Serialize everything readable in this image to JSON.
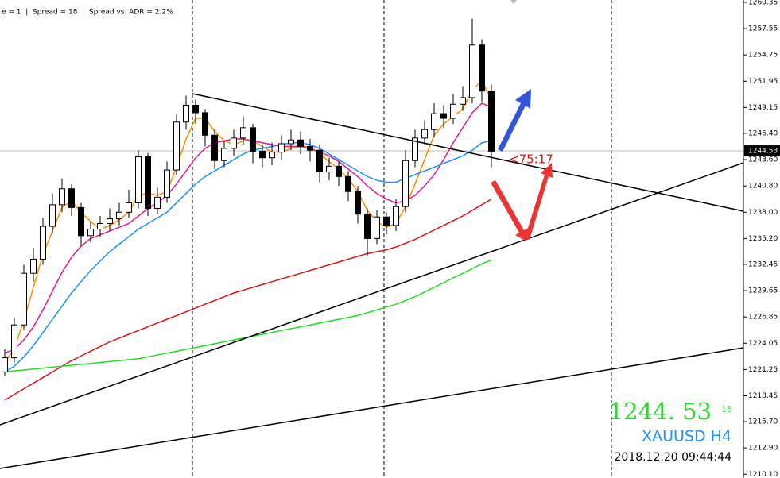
{
  "chart_data": {
    "type": "candlestick",
    "info": "e = 1  |  Spread = 18  |  Spread vs. ADR = 2.2%",
    "open": [
      1221.0,
      1222.5,
      1226.0,
      1231.5,
      1233.0,
      1236.5,
      1238.8,
      1240.5,
      1238.5,
      1235.5,
      1236.2,
      1236.8,
      1237.3,
      1238.0,
      1239.0,
      1243.9,
      1238.4,
      1239.6,
      1242.5,
      1247.6,
      1249.4,
      1248.6,
      1246.2,
      1243.5,
      1244.8,
      1245.9,
      1247.0,
      1244.5,
      1243.8,
      1244.4,
      1245.3,
      1245.7,
      1245.0,
      1244.6,
      1242.3,
      1242.9,
      1241.8,
      1240.2,
      1237.8,
      1235.2,
      1237.5,
      1236.6,
      1238.6,
      1243.5,
      1245.9,
      1246.8,
      1248.5,
      1248.0,
      1249.5,
      1250.2,
      1255.8,
      1250.9
    ],
    "high": [
      1223.4,
      1226.8,
      1232.4,
      1234.2,
      1237.4,
      1240.0,
      1241.6,
      1241.0,
      1239.0,
      1237.0,
      1237.6,
      1238.4,
      1239.0,
      1240.4,
      1244.6,
      1244.3,
      1240.6,
      1243.4,
      1248.4,
      1250.4,
      1250.0,
      1249.0,
      1246.8,
      1245.6,
      1246.8,
      1248.2,
      1247.4,
      1245.2,
      1245.4,
      1246.2,
      1246.8,
      1246.6,
      1245.8,
      1245.2,
      1243.8,
      1243.4,
      1242.4,
      1240.8,
      1238.4,
      1238.2,
      1238.0,
      1239.4,
      1244.6,
      1246.8,
      1247.8,
      1249.6,
      1249.4,
      1250.6,
      1251.4,
      1258.6,
      1256.4,
      1251.6
    ],
    "low": [
      1220.6,
      1222.0,
      1225.5,
      1230.6,
      1232.4,
      1235.8,
      1238.0,
      1237.6,
      1234.4,
      1234.8,
      1235.4,
      1236.0,
      1236.6,
      1237.4,
      1238.4,
      1237.6,
      1237.8,
      1239.0,
      1242.0,
      1246.8,
      1247.4,
      1245.0,
      1242.6,
      1242.8,
      1244.0,
      1245.2,
      1243.2,
      1242.8,
      1243.0,
      1243.6,
      1244.6,
      1244.2,
      1243.4,
      1241.2,
      1241.4,
      1240.8,
      1239.2,
      1236.8,
      1233.4,
      1234.6,
      1235.6,
      1236.0,
      1238.0,
      1242.8,
      1245.2,
      1246.0,
      1247.0,
      1247.4,
      1248.8,
      1249.6,
      1249.8,
      1242.8
    ],
    "close": [
      1222.5,
      1226.0,
      1231.5,
      1233.0,
      1236.5,
      1238.8,
      1240.5,
      1238.5,
      1235.5,
      1236.2,
      1236.8,
      1237.3,
      1238.0,
      1239.0,
      1243.9,
      1238.4,
      1239.6,
      1242.5,
      1247.6,
      1249.4,
      1248.6,
      1246.2,
      1243.5,
      1244.8,
      1245.9,
      1247.0,
      1244.5,
      1243.8,
      1244.4,
      1245.3,
      1245.7,
      1245.0,
      1244.6,
      1242.3,
      1242.9,
      1241.8,
      1240.2,
      1237.8,
      1235.2,
      1237.5,
      1236.6,
      1238.6,
      1243.5,
      1245.9,
      1246.8,
      1248.5,
      1248.0,
      1249.5,
      1250.2,
      1255.8,
      1250.9,
      1244.5
    ],
    "series": [
      {
        "color": "#ff8c00",
        "values": [
          1222.0,
          1223.5,
          1226.5,
          1230.0,
          1233.5,
          1236.0,
          1238.5,
          1239.2,
          1238.0,
          1237.0,
          1236.2,
          1236.6,
          1237.2,
          1238.0,
          1239.8,
          1240.0,
          1239.8,
          1240.2,
          1242.8,
          1245.8,
          1248.0,
          1248.0,
          1246.6,
          1245.6,
          1245.2,
          1245.6,
          1245.6,
          1245.0,
          1244.4,
          1244.4,
          1244.8,
          1245.0,
          1245.0,
          1244.2,
          1243.4,
          1242.6,
          1241.6,
          1240.2,
          1238.2,
          1237.0,
          1236.4,
          1236.8,
          1238.6,
          1241.0,
          1243.6,
          1246.2,
          1247.4,
          1248.2,
          1249.0,
          1251.0,
          1252.0,
          1250.0
        ]
      },
      {
        "color": "#e8188c",
        "values": [
          1223.0,
          1223.4,
          1224.4,
          1225.8,
          1227.6,
          1229.6,
          1231.6,
          1233.2,
          1234.4,
          1235.2,
          1235.6,
          1236.0,
          1236.4,
          1236.8,
          1237.6,
          1238.4,
          1239.0,
          1239.8,
          1241.0,
          1242.4,
          1243.8,
          1244.8,
          1245.4,
          1245.6,
          1245.8,
          1245.8,
          1245.6,
          1245.4,
          1245.2,
          1245.0,
          1245.0,
          1245.0,
          1244.8,
          1244.4,
          1244.0,
          1243.4,
          1242.6,
          1241.8,
          1240.8,
          1240.0,
          1239.4,
          1239.0,
          1239.2,
          1239.8,
          1240.8,
          1242.0,
          1243.6,
          1245.4,
          1247.0,
          1248.6,
          1249.6,
          1249.2
        ]
      },
      {
        "color": "#1e90ff",
        "values": [
          1221.0,
          1221.6,
          1222.6,
          1223.8,
          1225.2,
          1226.6,
          1228.0,
          1229.4,
          1230.6,
          1231.8,
          1232.8,
          1233.8,
          1234.6,
          1235.4,
          1236.2,
          1236.8,
          1237.4,
          1238.0,
          1239.0,
          1240.0,
          1241.0,
          1241.8,
          1242.4,
          1243.0,
          1243.6,
          1244.2,
          1244.6,
          1244.8,
          1245.0,
          1245.2,
          1245.4,
          1245.4,
          1245.2,
          1244.8,
          1244.2,
          1243.6,
          1243.0,
          1242.4,
          1241.8,
          1241.4,
          1241.2,
          1241.2,
          1241.6,
          1242.0,
          1242.4,
          1242.8,
          1243.2,
          1243.6,
          1244.0,
          1244.6,
          1245.4,
          1245.6
        ]
      },
      {
        "color": "#dc1414",
        "values": [
          1218.0,
          1218.6,
          1219.2,
          1219.8,
          1220.4,
          1221.0,
          1221.6,
          1222.2,
          1222.7,
          1223.2,
          1223.7,
          1224.2,
          1224.6,
          1225.0,
          1225.4,
          1225.8,
          1226.2,
          1226.6,
          1227.0,
          1227.4,
          1227.8,
          1228.2,
          1228.6,
          1229.0,
          1229.4,
          1229.7,
          1230.0,
          1230.3,
          1230.6,
          1230.9,
          1231.2,
          1231.5,
          1231.8,
          1232.1,
          1232.4,
          1232.7,
          1233.0,
          1233.3,
          1233.6,
          1233.8,
          1234.0,
          1234.3,
          1234.7,
          1235.1,
          1235.6,
          1236.1,
          1236.6,
          1237.1,
          1237.6,
          1238.2,
          1238.8,
          1239.4
        ]
      },
      {
        "color": "#22dd22",
        "values": [
          1221.0,
          1221.1,
          1221.2,
          1221.3,
          1221.4,
          1221.5,
          1221.6,
          1221.7,
          1221.8,
          1221.9,
          1222.0,
          1222.1,
          1222.2,
          1222.3,
          1222.4,
          1222.6,
          1222.8,
          1223.0,
          1223.2,
          1223.4,
          1223.6,
          1223.8,
          1224.0,
          1224.2,
          1224.4,
          1224.6,
          1224.8,
          1225.0,
          1225.2,
          1225.4,
          1225.6,
          1225.8,
          1226.0,
          1226.2,
          1226.4,
          1226.6,
          1226.8,
          1227.0,
          1227.3,
          1227.6,
          1227.9,
          1228.2,
          1228.6,
          1229.0,
          1229.5,
          1230.0,
          1230.5,
          1231.0,
          1231.5,
          1232.0,
          1232.5,
          1232.9
        ]
      }
    ],
    "current_price": 1244.53,
    "annotation": "<75:17",
    "big_price": "1244. 53",
    "big_price_sup": "18",
    "symbol": "XAUUSD H4",
    "timestamp": "2018.12.20 09:44:44",
    "ylim": [
      1209.7,
      1260.6
    ],
    "yticks": [
      1260.35,
      1257.55,
      1254.75,
      1251.95,
      1249.15,
      {
        "value": 1246.4,
        "label": "1246.40"
      },
      {
        "value": 1243.6,
        "label": "1243.60"
      },
      {
        "value": 1240.8,
        "label": "1240.80"
      },
      {
        "value": 1238.0,
        "label": "1238.00"
      },
      {
        "value": 1235.2,
        "label": "1235.20"
      },
      1232.45,
      1229.65,
      1226.85,
      1224.05,
      1221.25,
      1218.45,
      {
        "value": 1215.7,
        "label": "1215.70"
      },
      {
        "value": 1212.9,
        "label": "1212.90"
      },
      {
        "value": 1210.1,
        "label": "1210.10"
      }
    ]
  }
}
